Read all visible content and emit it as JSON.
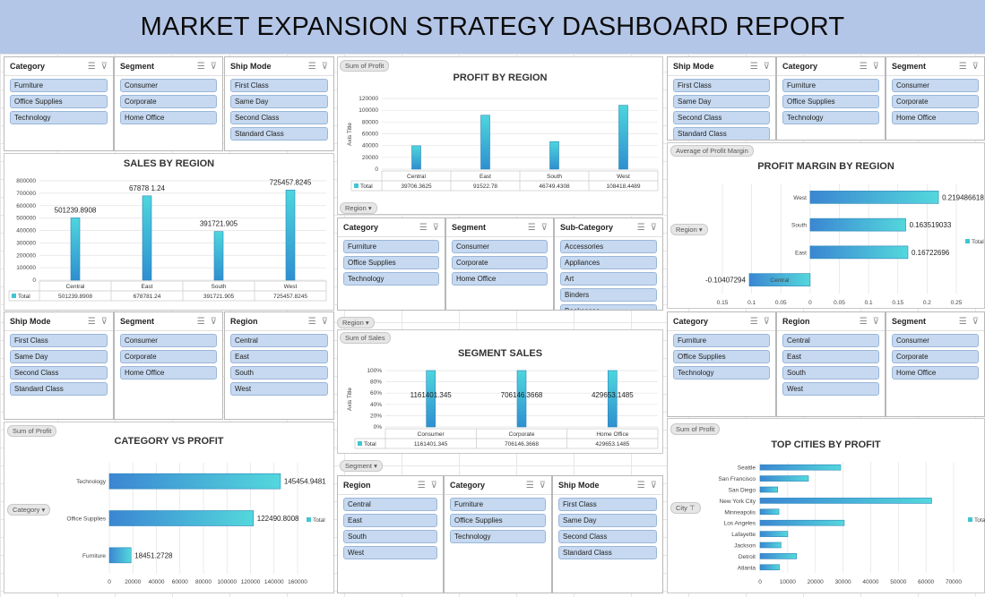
{
  "title": "MARKET EXPANSION STRATEGY DASHBOARD REPORT",
  "colors": {
    "banner": "#b4c6e7",
    "bar": "#3fc6d1",
    "slicer_item": "#c6d9f0"
  },
  "icons": [
    "multi-select-icon",
    "clear-filter-icon",
    "dropdown-arrow-icon"
  ],
  "slicers": {
    "top_left": [
      {
        "title": "Category",
        "items": [
          "Furniture",
          "Office Supplies",
          "Technology"
        ]
      },
      {
        "title": "Segment",
        "items": [
          "Consumer",
          "Corporate",
          "Home Office"
        ]
      },
      {
        "title": "Ship Mode",
        "items": [
          "First Class",
          "Same Day",
          "Second Class",
          "Standard Class"
        ]
      }
    ],
    "top_right": [
      {
        "title": "Ship Mode",
        "items": [
          "First Class",
          "Same Day",
          "Second Class",
          "Standard Class"
        ]
      },
      {
        "title": "Category",
        "items": [
          "Furniture",
          "Office Supplies",
          "Technology"
        ]
      },
      {
        "title": "Segment",
        "items": [
          "Consumer",
          "Corporate",
          "Home Office"
        ]
      }
    ],
    "mid_center": [
      {
        "title": "Category",
        "items": [
          "Furniture",
          "Office Supplies",
          "Technology"
        ]
      },
      {
        "title": "Segment",
        "items": [
          "Consumer",
          "Corporate",
          "Home Office"
        ]
      },
      {
        "title": "Sub-Category",
        "items": [
          "Accessories",
          "Appliances",
          "Art",
          "Binders",
          "Bookcases"
        ]
      }
    ],
    "mid_left": [
      {
        "title": "Ship Mode",
        "items": [
          "First Class",
          "Same Day",
          "Second Class",
          "Standard Class"
        ]
      },
      {
        "title": "Segment",
        "items": [
          "Consumer",
          "Corporate",
          "Home Office"
        ]
      },
      {
        "title": "Region",
        "items": [
          "Central",
          "East",
          "South",
          "West"
        ]
      }
    ],
    "mid_right": [
      {
        "title": "Category",
        "items": [
          "Furniture",
          "Office Supplies",
          "Technology"
        ]
      },
      {
        "title": "Region",
        "items": [
          "Central",
          "East",
          "South",
          "West"
        ]
      },
      {
        "title": "Segment",
        "items": [
          "Consumer",
          "Corporate",
          "Home Office"
        ]
      }
    ],
    "bottom_center": [
      {
        "title": "Region",
        "items": [
          "Central",
          "East",
          "South",
          "West"
        ]
      },
      {
        "title": "Category",
        "items": [
          "Furniture",
          "Office Supplies",
          "Technology"
        ]
      },
      {
        "title": "Ship Mode",
        "items": [
          "First Class",
          "Same Day",
          "Second Class",
          "Standard Class"
        ]
      }
    ]
  },
  "pills": {
    "profit_region_field": "Sum of Profit",
    "profit_region_axis": "Region",
    "margin_field": "Average of Profit Margin",
    "margin_axis": "Region",
    "segment_region_filter": "Region",
    "segment_field": "Sum of Sales",
    "segment_axis": "Segment",
    "category_field": "Sum of Profit",
    "category_axis": "Category",
    "cities_field": "Sum of Profit",
    "cities_axis": "City"
  },
  "legend_total": "Total",
  "legend_total_short": "Tota",
  "chart_data": [
    {
      "id": "sales_by_region",
      "type": "bar",
      "title": "SALES BY REGION",
      "categories": [
        "Central",
        "East",
        "South",
        "West"
      ],
      "values": [
        501239.8908,
        678781.24,
        391721.905,
        725457.8245
      ],
      "labels": [
        "501239.8908",
        "67878 1.24",
        "391721.905",
        "725457.8245"
      ],
      "table_values": [
        "501239.8908",
        "678781.24",
        "391721.905",
        "725457.8245"
      ],
      "ylim": [
        0,
        800000
      ],
      "yticks": [
        "800000",
        "700000",
        "600000",
        "500000",
        "400000",
        "300000",
        "200000",
        "100000",
        "0"
      ],
      "series": [
        {
          "name": "Total",
          "values": [
            501239.8908,
            678781.24,
            391721.905,
            725457.8245
          ]
        }
      ]
    },
    {
      "id": "profit_by_region",
      "type": "bar",
      "title": "PROFIT BY REGION",
      "ylabel": "Axis Title",
      "categories": [
        "Central",
        "East",
        "South",
        "West"
      ],
      "values": [
        39706.3625,
        91522.78,
        46749.4308,
        108418.4489
      ],
      "table_values": [
        "39706.3625",
        "91522.78",
        "46749.4308",
        "108418.4489"
      ],
      "ylim": [
        0,
        120000
      ],
      "yticks": [
        "120000",
        "100000",
        "80000",
        "60000",
        "40000",
        "20000",
        "0"
      ],
      "series": [
        {
          "name": "Total",
          "values": [
            39706.3625,
            91522.78,
            46749.4308,
            108418.4489
          ]
        }
      ]
    },
    {
      "id": "profit_margin_by_region",
      "type": "bar",
      "title": "PROFIT MARGIN BY REGION",
      "categories": [
        "West",
        "South",
        "East",
        "Central"
      ],
      "values": [
        0.219486618,
        0.163519033,
        0.16722696,
        -0.10407294
      ],
      "labels": [
        "0.219486618",
        "0.163519033",
        "0.16722696",
        "-0.10407294"
      ],
      "xlim": [
        -0.15,
        0.25
      ],
      "xticks": [
        "0.15",
        "0.1",
        "0.05",
        "0",
        "0.05",
        "0.1",
        "0.15",
        "0.2",
        "0.25"
      ],
      "series": [
        {
          "name": "Total",
          "values": [
            0.219486618,
            0.163519033,
            0.16722696,
            -0.10407294
          ]
        }
      ]
    },
    {
      "id": "segment_sales",
      "type": "bar",
      "title": "SEGMENT SALES",
      "ylabel": "Axis Title",
      "categories": [
        "Consumer",
        "Corporate",
        "Home Office"
      ],
      "values": [
        1161401.345,
        706146.3668,
        429653.1485
      ],
      "labels": [
        "1161401.345",
        "706146.3668",
        "429653.1485"
      ],
      "table_values": [
        "1161401.345",
        "706146.3668",
        "429653.1485"
      ],
      "yticks": [
        "100%",
        "80%",
        "60%",
        "40%",
        "20%",
        "0%"
      ],
      "series": [
        {
          "name": "Total",
          "values": [
            1161401.345,
            706146.3668,
            429653.1485
          ]
        }
      ]
    },
    {
      "id": "category_vs_profit",
      "type": "bar",
      "title": "CATEGORY VS PROFIT",
      "categories": [
        "Technology",
        "Office Supplies",
        "Furniture"
      ],
      "values": [
        145454.9481,
        122490.8008,
        18451.2728
      ],
      "labels": [
        "145454.9481",
        "122490.8008",
        "18451.2728"
      ],
      "xlim": [
        0,
        160000
      ],
      "xticks": [
        "0",
        "20000",
        "40000",
        "60000",
        "80000",
        "100000",
        "120000",
        "140000",
        "160000"
      ],
      "series": [
        {
          "name": "Total",
          "values": [
            145454.9481,
            122490.8008,
            18451.2728
          ]
        }
      ]
    },
    {
      "id": "top_cities_by_profit",
      "type": "bar",
      "title": "TOP CITIES BY PROFIT",
      "categories": [
        "Seattle",
        "San Francisco",
        "San Diego",
        "New York City",
        "Minneapolis",
        "Los Angeles",
        "Lafayette",
        "Jackson",
        "Detroit",
        "Atlanta"
      ],
      "values": [
        29156,
        17507,
        6377,
        62037,
        6824,
        30441,
        10018,
        7582,
        13181,
        6994
      ],
      "xlim": [
        0,
        70000
      ],
      "xticks": [
        "0",
        "10000",
        "20000",
        "30000",
        "40000",
        "50000",
        "60000",
        "70000"
      ],
      "series": [
        {
          "name": "Total",
          "values": [
            29156,
            17507,
            6377,
            62037,
            6824,
            30441,
            10018,
            7582,
            13181,
            6994
          ]
        }
      ]
    }
  ]
}
